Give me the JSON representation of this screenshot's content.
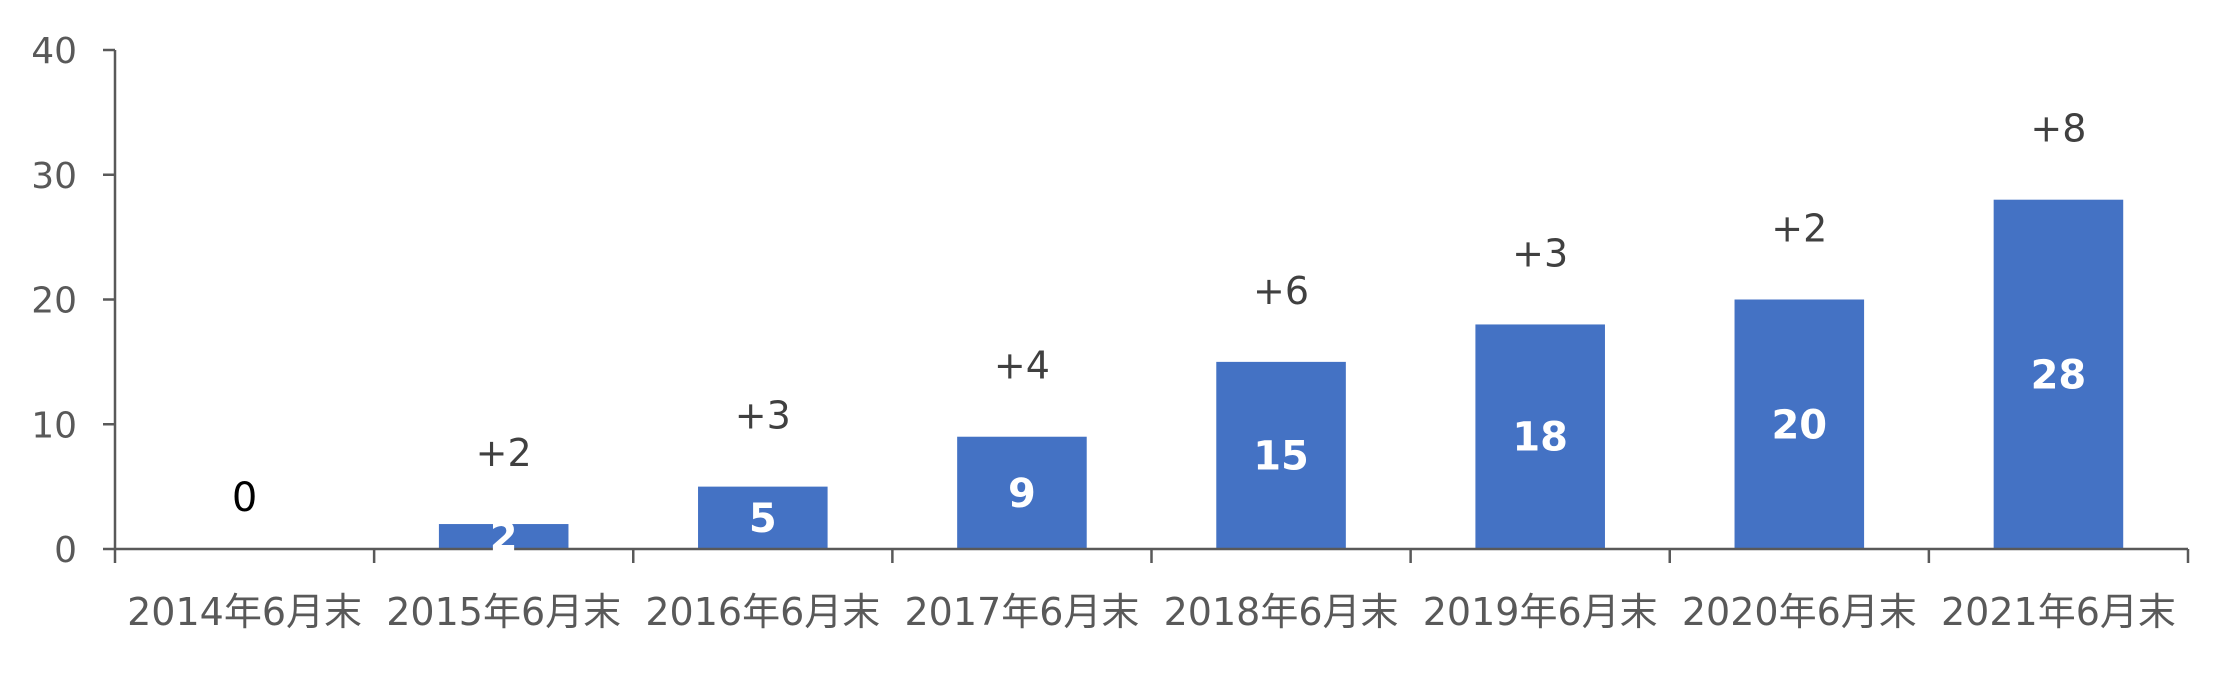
{
  "chart_data": {
    "type": "bar",
    "categories": [
      "2014年6月末",
      "2015年6月末",
      "2016年6月末",
      "2017年6月末",
      "2018年6月末",
      "2019年6月末",
      "2020年6月末",
      "2021年6月末"
    ],
    "values": [
      0,
      2,
      5,
      9,
      15,
      18,
      20,
      28
    ],
    "value_labels": [
      "0",
      "2",
      "5",
      "9",
      "15",
      "18",
      "20",
      "28"
    ],
    "change_labels": [
      "",
      "+2",
      "+3",
      "+4",
      "+6",
      "+3",
      "+2",
      "+8"
    ],
    "yticks": [
      "0",
      "10",
      "20",
      "30",
      "40"
    ],
    "ylim": [
      0,
      40
    ],
    "grid": false,
    "legend": "none",
    "bar_color": "#4472C4"
  }
}
